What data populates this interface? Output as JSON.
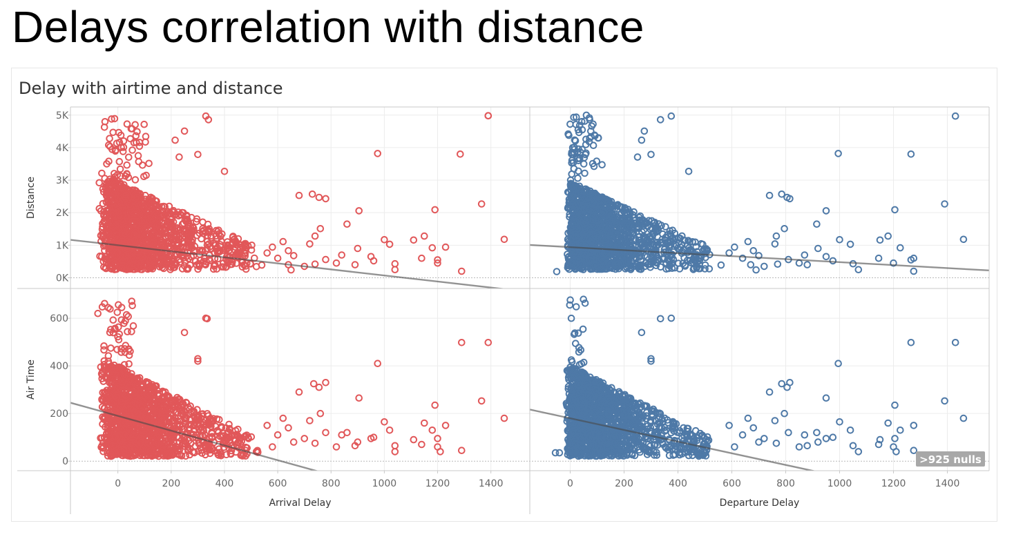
{
  "page": {
    "title": "Delays correlation with distance"
  },
  "sheet": {
    "title": "Delay with airtime and distance"
  },
  "colors": {
    "arrival": "#e15759",
    "departure": "#4e79a7",
    "trend": "#7f7f7f",
    "grid": "#ececec",
    "axis": "#c8c8c8"
  },
  "nulls_badge": ">925 nulls",
  "chart_data": {
    "type": "scatter",
    "columns": [
      {
        "key": "arrival",
        "xlabel": "Arrival Delay",
        "xlim": [
          -178,
          1546
        ],
        "xticks": [
          0,
          200,
          400,
          600,
          800,
          1000,
          1200,
          1400
        ],
        "xtick_labels": [
          "0",
          "200",
          "400",
          "600",
          "800",
          "1000",
          "1200",
          "1400"
        ],
        "color": "#e15759"
      },
      {
        "key": "departure",
        "xlabel": "Departure Delay",
        "xlim": [
          -150,
          1555
        ],
        "xticks": [
          0,
          200,
          400,
          600,
          800,
          1000,
          1200,
          1400
        ],
        "xtick_labels": [
          "0",
          "200",
          "400",
          "600",
          "800",
          "1000",
          "1200",
          "1400"
        ],
        "color": "#4e79a7"
      }
    ],
    "rows": [
      {
        "key": "distance",
        "ylabel": "Distance",
        "ylim": [
          -330,
          5250
        ],
        "yticks": [
          0,
          1000,
          2000,
          3000,
          4000,
          5000
        ],
        "ytick_labels": [
          "0K",
          "1K",
          "2K",
          "3K",
          "4K",
          "5K"
        ]
      },
      {
        "key": "airtime",
        "ylabel": "Air Time",
        "ylim": [
          -40,
          725
        ],
        "yticks": [
          0,
          200,
          400,
          600
        ],
        "ytick_labels": [
          "0",
          "200",
          "400",
          "600"
        ]
      }
    ],
    "trend_lines": {
      "arrival_distance": {
        "intercept": 1000,
        "slope": -0.93
      },
      "departure_distance": {
        "intercept": 940,
        "slope": -0.46
      },
      "arrival_airtime": {
        "intercept": 190,
        "slope": -0.31
      },
      "departure_airtime": {
        "intercept": 180,
        "slope": -0.245
      }
    },
    "series": [
      {
        "name": "arrival_distance",
        "points": [
          [
            1390,
            4980
          ],
          [
            975,
            3820
          ],
          [
            1285,
            3800
          ],
          [
            -70,
            2920
          ],
          [
            1450,
            1180
          ],
          [
            1190,
            2090
          ],
          [
            1365,
            2270
          ],
          [
            1290,
            200
          ],
          [
            905,
            2060
          ],
          [
            860,
            1650
          ],
          [
            755,
            2470
          ],
          [
            780,
            2430
          ],
          [
            730,
            2570
          ],
          [
            680,
            2530
          ],
          [
            1000,
            1170
          ],
          [
            1020,
            1030
          ],
          [
            1150,
            1280
          ],
          [
            1180,
            920
          ],
          [
            1230,
            940
          ],
          [
            1110,
            1160
          ],
          [
            1200,
            550
          ],
          [
            1200,
            450
          ],
          [
            1140,
            600
          ],
          [
            1040,
            430
          ],
          [
            1040,
            250
          ],
          [
            950,
            650
          ],
          [
            960,
            520
          ],
          [
            900,
            900
          ],
          [
            890,
            400
          ],
          [
            840,
            700
          ],
          [
            820,
            450
          ],
          [
            780,
            560
          ],
          [
            760,
            1510
          ],
          [
            740,
            1280
          ],
          [
            740,
            420
          ],
          [
            720,
            1040
          ],
          [
            700,
            350
          ],
          [
            660,
            680
          ],
          [
            640,
            830
          ],
          [
            640,
            400
          ],
          [
            650,
            240
          ],
          [
            600,
            600
          ],
          [
            620,
            1110
          ],
          [
            580,
            940
          ],
          [
            560,
            760
          ],
          [
            540,
            390
          ],
          [
            330,
            4970
          ],
          [
            340,
            4860
          ],
          [
            300,
            3790
          ],
          [
            215,
            4230
          ],
          [
            250,
            4510
          ],
          [
            230,
            3710
          ],
          [
            400,
            3270
          ],
          [
            1390,
            4980
          ]
        ]
      },
      {
        "name": "departure_distance",
        "points": [
          [
            1430,
            4970
          ],
          [
            995,
            3820
          ],
          [
            1265,
            3800
          ],
          [
            1460,
            1180
          ],
          [
            1205,
            2090
          ],
          [
            1390,
            2270
          ],
          [
            1275,
            200
          ],
          [
            950,
            2060
          ],
          [
            915,
            1650
          ],
          [
            805,
            2470
          ],
          [
            815,
            2430
          ],
          [
            785,
            2570
          ],
          [
            740,
            2530
          ],
          [
            1000,
            1170
          ],
          [
            1040,
            1030
          ],
          [
            1180,
            1280
          ],
          [
            1225,
            920
          ],
          [
            1275,
            600
          ],
          [
            1150,
            1160
          ],
          [
            1265,
            550
          ],
          [
            1200,
            450
          ],
          [
            1145,
            600
          ],
          [
            1050,
            430
          ],
          [
            1070,
            250
          ],
          [
            950,
            650
          ],
          [
            975,
            520
          ],
          [
            920,
            900
          ],
          [
            880,
            400
          ],
          [
            870,
            700
          ],
          [
            850,
            450
          ],
          [
            810,
            560
          ],
          [
            795,
            1510
          ],
          [
            765,
            1280
          ],
          [
            770,
            420
          ],
          [
            760,
            1040
          ],
          [
            720,
            350
          ],
          [
            700,
            680
          ],
          [
            680,
            830
          ],
          [
            670,
            400
          ],
          [
            690,
            240
          ],
          [
            640,
            600
          ],
          [
            660,
            1110
          ],
          [
            610,
            940
          ],
          [
            590,
            760
          ],
          [
            560,
            390
          ],
          [
            -50,
            190
          ],
          [
            375,
            4970
          ],
          [
            335,
            4860
          ],
          [
            300,
            3790
          ],
          [
            265,
            4230
          ],
          [
            275,
            4510
          ],
          [
            250,
            3710
          ],
          [
            440,
            3270
          ]
        ]
      },
      {
        "name": "arrival_airtime",
        "points": [
          [
            1390,
            498
          ],
          [
            1290,
            498
          ],
          [
            975,
            410
          ],
          [
            1365,
            253
          ],
          [
            1450,
            180
          ],
          [
            1190,
            235
          ],
          [
            905,
            265
          ],
          [
            860,
            120
          ],
          [
            780,
            330
          ],
          [
            755,
            310
          ],
          [
            735,
            325
          ],
          [
            680,
            290
          ],
          [
            1000,
            165
          ],
          [
            1020,
            130
          ],
          [
            1150,
            160
          ],
          [
            1180,
            130
          ],
          [
            1230,
            150
          ],
          [
            1110,
            90
          ],
          [
            1200,
            95
          ],
          [
            1200,
            60
          ],
          [
            1140,
            70
          ],
          [
            1040,
            65
          ],
          [
            1040,
            40
          ],
          [
            950,
            95
          ],
          [
            960,
            100
          ],
          [
            900,
            80
          ],
          [
            890,
            65
          ],
          [
            840,
            110
          ],
          [
            820,
            60
          ],
          [
            780,
            120
          ],
          [
            760,
            200
          ],
          [
            740,
            75
          ],
          [
            720,
            170
          ],
          [
            700,
            95
          ],
          [
            660,
            80
          ],
          [
            640,
            140
          ],
          [
            620,
            180
          ],
          [
            600,
            110
          ],
          [
            580,
            60
          ],
          [
            560,
            150
          ],
          [
            1290,
            45
          ],
          [
            1210,
            40
          ],
          [
            330,
            600
          ],
          [
            335,
            598
          ],
          [
            300,
            430
          ],
          [
            300,
            420
          ],
          [
            250,
            540
          ],
          [
            -75,
            620
          ],
          [
            -60,
            260
          ],
          [
            -30,
            540
          ]
        ]
      },
      {
        "name": "departure_airtime",
        "points": [
          [
            1430,
            498
          ],
          [
            1265,
            498
          ],
          [
            995,
            410
          ],
          [
            1390,
            253
          ],
          [
            1460,
            180
          ],
          [
            1205,
            235
          ],
          [
            950,
            265
          ],
          [
            915,
            120
          ],
          [
            815,
            330
          ],
          [
            805,
            310
          ],
          [
            785,
            325
          ],
          [
            740,
            290
          ],
          [
            1000,
            165
          ],
          [
            1040,
            130
          ],
          [
            1180,
            160
          ],
          [
            1225,
            130
          ],
          [
            1275,
            150
          ],
          [
            1150,
            90
          ],
          [
            1205,
            95
          ],
          [
            1200,
            60
          ],
          [
            1145,
            70
          ],
          [
            1050,
            65
          ],
          [
            1070,
            40
          ],
          [
            950,
            95
          ],
          [
            975,
            100
          ],
          [
            920,
            80
          ],
          [
            880,
            65
          ],
          [
            870,
            110
          ],
          [
            850,
            60
          ],
          [
            810,
            120
          ],
          [
            795,
            200
          ],
          [
            765,
            75
          ],
          [
            760,
            170
          ],
          [
            720,
            95
          ],
          [
            700,
            80
          ],
          [
            680,
            140
          ],
          [
            660,
            180
          ],
          [
            640,
            110
          ],
          [
            610,
            60
          ],
          [
            590,
            150
          ],
          [
            1275,
            45
          ],
          [
            1210,
            40
          ],
          [
            375,
            600
          ],
          [
            335,
            598
          ],
          [
            300,
            430
          ],
          [
            300,
            420
          ],
          [
            265,
            540
          ],
          [
            -55,
            35
          ],
          [
            -40,
            35
          ]
        ]
      }
    ]
  }
}
